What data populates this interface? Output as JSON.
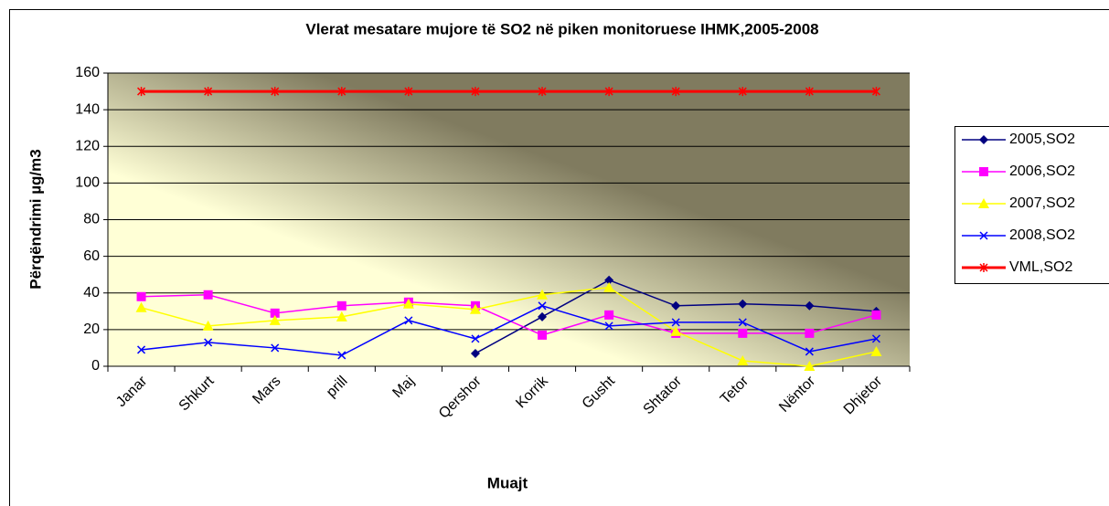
{
  "chart_data": {
    "type": "line",
    "title": "Vlerat mesatare mujore të SO2 në piken monitoruese IHMK,2005-2008",
    "x_label": "Muajt",
    "y_label": "Përqëndrimi µg/m3",
    "categories": [
      "Janar",
      "Shkurt",
      "Mars",
      "prill",
      "Maj",
      "Qershor",
      "Korrik",
      "Gusht",
      "Shtator",
      "Tetor",
      "Nëntor",
      "Dhjetor"
    ],
    "series": [
      {
        "name": "2005,SO2",
        "color": "#000080",
        "marker": "diamond",
        "values": [
          null,
          null,
          null,
          null,
          null,
          7,
          27,
          47,
          33,
          34,
          33,
          30
        ]
      },
      {
        "name": "2006,SO2",
        "color": "#ff00ff",
        "marker": "square",
        "values": [
          38,
          39,
          29,
          33,
          35,
          33,
          17,
          28,
          18,
          18,
          18,
          28
        ]
      },
      {
        "name": "2007,SO2",
        "color": "#ffff00",
        "marker": "triangle",
        "values": [
          32,
          22,
          25,
          27,
          34,
          31,
          39,
          43,
          19,
          3,
          0,
          8
        ]
      },
      {
        "name": "2008,SO2",
        "color": "#0000ff",
        "marker": "x",
        "values": [
          9,
          13,
          10,
          6,
          25,
          15,
          33,
          22,
          24,
          24,
          8,
          15
        ]
      },
      {
        "name": "VML,SO2",
        "color": "#ff0000",
        "marker": "star",
        "values": [
          150,
          150,
          150,
          150,
          150,
          150,
          150,
          150,
          150,
          150,
          150,
          150
        ]
      }
    ],
    "ylim": [
      0,
      160
    ],
    "yticks": [
      0,
      20,
      40,
      60,
      80,
      100,
      120,
      140,
      160
    ],
    "grid": true,
    "legend": "right"
  }
}
